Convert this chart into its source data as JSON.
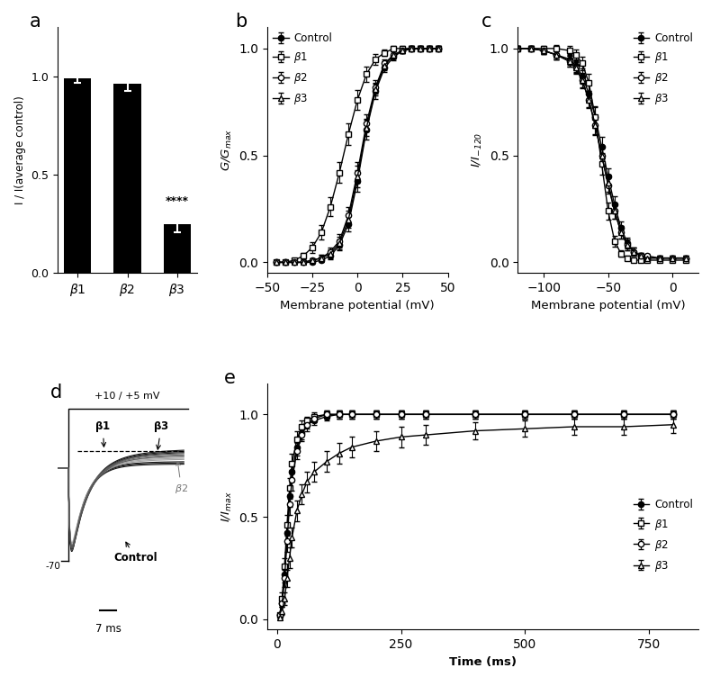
{
  "panel_a": {
    "bars": [
      "β1",
      "β2",
      "β3"
    ],
    "values": [
      0.99,
      0.96,
      0.25
    ],
    "errors": [
      0.025,
      0.035,
      0.045
    ],
    "ylabel": "I / I(average control)",
    "yticks": [
      0.0,
      0.5,
      1.0
    ],
    "ylim": [
      0.0,
      1.25
    ],
    "significance": "****",
    "sig_bar_index": 2
  },
  "panel_b": {
    "xlabel": "Membrane potential (mV)",
    "ylabel": "G/G$_{max}$",
    "xlim": [
      -50,
      50
    ],
    "ylim": [
      -0.05,
      1.1
    ],
    "xticks": [
      -50,
      -25,
      0,
      25,
      50
    ],
    "yticks": [
      0.0,
      0.5,
      1.0
    ],
    "control": {
      "x": [
        -45,
        -40,
        -35,
        -30,
        -25,
        -20,
        -15,
        -10,
        -5,
        0,
        5,
        10,
        15,
        20,
        25,
        30,
        35,
        40,
        45
      ],
      "y": [
        0.0,
        0.0,
        0.0,
        0.0,
        0.0,
        0.01,
        0.03,
        0.08,
        0.18,
        0.38,
        0.62,
        0.8,
        0.91,
        0.96,
        0.99,
        1.0,
        1.0,
        1.0,
        1.0
      ],
      "err": [
        0.005,
        0.005,
        0.005,
        0.005,
        0.005,
        0.01,
        0.015,
        0.025,
        0.035,
        0.05,
        0.045,
        0.035,
        0.02,
        0.015,
        0.01,
        0.01,
        0.01,
        0.01,
        0.01
      ]
    },
    "b1": {
      "x": [
        -45,
        -40,
        -35,
        -30,
        -25,
        -20,
        -15,
        -10,
        -5,
        0,
        5,
        10,
        15,
        20,
        25,
        30,
        35,
        40,
        45
      ],
      "y": [
        0.0,
        0.0,
        0.01,
        0.03,
        0.07,
        0.14,
        0.26,
        0.42,
        0.6,
        0.76,
        0.88,
        0.95,
        0.98,
        1.0,
        1.0,
        1.0,
        1.0,
        1.0,
        1.0
      ],
      "err": [
        0.005,
        0.005,
        0.01,
        0.015,
        0.025,
        0.035,
        0.045,
        0.05,
        0.05,
        0.045,
        0.035,
        0.025,
        0.015,
        0.01,
        0.01,
        0.01,
        0.01,
        0.01,
        0.01
      ]
    },
    "b2": {
      "x": [
        -45,
        -40,
        -35,
        -30,
        -25,
        -20,
        -15,
        -10,
        -5,
        0,
        5,
        10,
        15,
        20,
        25,
        30,
        35,
        40,
        45
      ],
      "y": [
        0.0,
        0.0,
        0.0,
        0.0,
        0.01,
        0.02,
        0.05,
        0.1,
        0.22,
        0.42,
        0.65,
        0.82,
        0.93,
        0.97,
        0.99,
        1.0,
        1.0,
        1.0,
        1.0
      ],
      "err": [
        0.005,
        0.005,
        0.005,
        0.005,
        0.01,
        0.015,
        0.02,
        0.03,
        0.04,
        0.05,
        0.04,
        0.03,
        0.02,
        0.015,
        0.01,
        0.01,
        0.01,
        0.01,
        0.01
      ]
    },
    "b3": {
      "x": [
        -45,
        -40,
        -35,
        -30,
        -25,
        -20,
        -15,
        -10,
        -5,
        0,
        5,
        10,
        15,
        20,
        25,
        30,
        35,
        40,
        45
      ],
      "y": [
        0.0,
        0.0,
        0.0,
        0.0,
        0.01,
        0.02,
        0.04,
        0.09,
        0.2,
        0.4,
        0.63,
        0.81,
        0.92,
        0.97,
        0.99,
        1.0,
        1.0,
        1.0,
        1.0
      ],
      "err": [
        0.005,
        0.005,
        0.005,
        0.005,
        0.01,
        0.015,
        0.02,
        0.03,
        0.04,
        0.05,
        0.04,
        0.03,
        0.02,
        0.015,
        0.01,
        0.01,
        0.01,
        0.01,
        0.01
      ]
    }
  },
  "panel_c": {
    "xlabel": "Membrane potential (mV)",
    "ylabel": "I/I$_{-120}$",
    "xlim": [
      -120,
      20
    ],
    "ylim": [
      -0.05,
      1.1
    ],
    "xticks": [
      -100,
      -50,
      0
    ],
    "yticks": [
      0.0,
      0.5,
      1.0
    ],
    "control": {
      "x": [
        -120,
        -110,
        -100,
        -90,
        -80,
        -75,
        -70,
        -65,
        -60,
        -55,
        -50,
        -45,
        -40,
        -35,
        -30,
        -25,
        -20,
        -10,
        0,
        10
      ],
      "y": [
        1.0,
        1.0,
        0.99,
        0.97,
        0.95,
        0.92,
        0.87,
        0.79,
        0.68,
        0.54,
        0.4,
        0.27,
        0.16,
        0.09,
        0.05,
        0.03,
        0.02,
        0.02,
        0.02,
        0.02
      ],
      "err": [
        0.01,
        0.01,
        0.015,
        0.02,
        0.025,
        0.03,
        0.035,
        0.04,
        0.045,
        0.045,
        0.04,
        0.04,
        0.03,
        0.025,
        0.02,
        0.015,
        0.01,
        0.01,
        0.01,
        0.01
      ]
    },
    "b1": {
      "x": [
        -120,
        -110,
        -100,
        -90,
        -80,
        -75,
        -70,
        -65,
        -60,
        -55,
        -50,
        -45,
        -40,
        -35,
        -30,
        -25,
        -20,
        -10,
        0,
        10
      ],
      "y": [
        1.0,
        1.0,
        1.0,
        1.0,
        0.99,
        0.97,
        0.93,
        0.84,
        0.68,
        0.46,
        0.24,
        0.1,
        0.04,
        0.02,
        0.01,
        0.01,
        0.01,
        0.01,
        0.01,
        0.01
      ],
      "err": [
        0.01,
        0.01,
        0.01,
        0.015,
        0.02,
        0.025,
        0.03,
        0.04,
        0.05,
        0.05,
        0.04,
        0.025,
        0.015,
        0.01,
        0.01,
        0.01,
        0.01,
        0.01,
        0.01,
        0.01
      ]
    },
    "b2": {
      "x": [
        -120,
        -110,
        -100,
        -90,
        -80,
        -75,
        -70,
        -65,
        -60,
        -55,
        -50,
        -45,
        -40,
        -35,
        -30,
        -25,
        -20,
        -10,
        0,
        10
      ],
      "y": [
        1.0,
        1.0,
        0.99,
        0.97,
        0.94,
        0.91,
        0.85,
        0.76,
        0.64,
        0.5,
        0.36,
        0.24,
        0.14,
        0.08,
        0.05,
        0.03,
        0.03,
        0.02,
        0.02,
        0.02
      ],
      "err": [
        0.01,
        0.01,
        0.015,
        0.02,
        0.025,
        0.025,
        0.03,
        0.035,
        0.04,
        0.04,
        0.04,
        0.035,
        0.03,
        0.025,
        0.02,
        0.015,
        0.01,
        0.01,
        0.01,
        0.01
      ]
    },
    "b3": {
      "x": [
        -120,
        -110,
        -100,
        -90,
        -80,
        -75,
        -70,
        -65,
        -60,
        -55,
        -50,
        -45,
        -40,
        -35,
        -30,
        -25,
        -20,
        -10,
        0,
        10
      ],
      "y": [
        1.0,
        1.0,
        0.99,
        0.97,
        0.94,
        0.91,
        0.85,
        0.76,
        0.64,
        0.5,
        0.37,
        0.24,
        0.14,
        0.08,
        0.05,
        0.03,
        0.02,
        0.02,
        0.02,
        0.02
      ],
      "err": [
        0.01,
        0.01,
        0.015,
        0.02,
        0.025,
        0.03,
        0.035,
        0.04,
        0.045,
        0.04,
        0.04,
        0.035,
        0.03,
        0.025,
        0.02,
        0.015,
        0.01,
        0.01,
        0.01,
        0.01
      ]
    }
  },
  "panel_e": {
    "xlabel": "Time (ms)",
    "ylabel": "I/I$_{max}$",
    "xlim": [
      -20,
      850
    ],
    "ylim": [
      -0.05,
      1.15
    ],
    "xticks": [
      0,
      250,
      500,
      750
    ],
    "yticks": [
      0.0,
      0.5,
      1.0
    ],
    "control": {
      "x": [
        5,
        10,
        15,
        20,
        25,
        30,
        40,
        50,
        60,
        75,
        100,
        125,
        150,
        200,
        250,
        300,
        400,
        500,
        600,
        700,
        800
      ],
      "y": [
        0.02,
        0.08,
        0.22,
        0.42,
        0.6,
        0.72,
        0.84,
        0.91,
        0.95,
        0.97,
        0.99,
        1.0,
        1.0,
        1.0,
        1.0,
        1.0,
        1.0,
        1.0,
        1.0,
        1.0,
        1.0
      ],
      "err": [
        0.01,
        0.02,
        0.04,
        0.05,
        0.05,
        0.05,
        0.04,
        0.03,
        0.03,
        0.02,
        0.02,
        0.02,
        0.02,
        0.02,
        0.02,
        0.02,
        0.02,
        0.02,
        0.02,
        0.02,
        0.02
      ]
    },
    "b1": {
      "x": [
        5,
        10,
        15,
        20,
        25,
        30,
        40,
        50,
        60,
        75,
        100,
        125,
        150,
        200,
        250,
        300,
        400,
        500,
        600,
        700,
        800
      ],
      "y": [
        0.02,
        0.1,
        0.26,
        0.46,
        0.64,
        0.76,
        0.88,
        0.94,
        0.97,
        0.99,
        1.0,
        1.0,
        1.0,
        1.0,
        1.0,
        1.0,
        1.0,
        1.0,
        1.0,
        1.0,
        1.0
      ],
      "err": [
        0.01,
        0.03,
        0.04,
        0.05,
        0.05,
        0.05,
        0.04,
        0.03,
        0.02,
        0.02,
        0.02,
        0.02,
        0.02,
        0.02,
        0.02,
        0.02,
        0.02,
        0.02,
        0.02,
        0.02,
        0.02
      ]
    },
    "b2": {
      "x": [
        5,
        10,
        15,
        20,
        25,
        30,
        40,
        50,
        60,
        75,
        100,
        125,
        150,
        200,
        250,
        300,
        400,
        500,
        600,
        700,
        800
      ],
      "y": [
        0.02,
        0.08,
        0.2,
        0.38,
        0.56,
        0.68,
        0.82,
        0.9,
        0.95,
        0.98,
        1.0,
        1.0,
        1.0,
        1.0,
        1.0,
        1.0,
        1.0,
        1.0,
        1.0,
        1.0,
        1.0
      ],
      "err": [
        0.01,
        0.02,
        0.04,
        0.05,
        0.05,
        0.05,
        0.04,
        0.03,
        0.02,
        0.02,
        0.02,
        0.02,
        0.02,
        0.02,
        0.02,
        0.02,
        0.02,
        0.02,
        0.02,
        0.02,
        0.02
      ]
    },
    "b3": {
      "x": [
        5,
        10,
        15,
        20,
        25,
        30,
        40,
        50,
        60,
        75,
        100,
        125,
        150,
        200,
        250,
        300,
        400,
        500,
        600,
        700,
        800
      ],
      "y": [
        0.01,
        0.04,
        0.1,
        0.2,
        0.3,
        0.4,
        0.53,
        0.61,
        0.67,
        0.72,
        0.77,
        0.81,
        0.84,
        0.87,
        0.89,
        0.9,
        0.92,
        0.93,
        0.94,
        0.94,
        0.95
      ],
      "err": [
        0.01,
        0.02,
        0.03,
        0.04,
        0.05,
        0.05,
        0.05,
        0.05,
        0.05,
        0.05,
        0.05,
        0.05,
        0.05,
        0.05,
        0.05,
        0.05,
        0.04,
        0.04,
        0.04,
        0.04,
        0.04
      ]
    }
  },
  "panel_d": {
    "voltage_label": "+10 / +5 mV",
    "holding": "-70",
    "scale_label": "7 ms",
    "beta1_label": "β1",
    "beta2_label": "β2",
    "beta3_label": "β3",
    "control_label": "Control"
  }
}
